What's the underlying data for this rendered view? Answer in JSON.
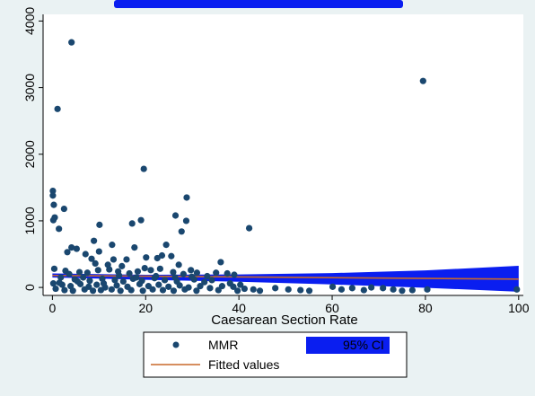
{
  "chart_data": {
    "type": "scatter",
    "title": "",
    "xlabel": "Caesarean Section Rate",
    "ylabel": "",
    "xlim": [
      -2,
      101
    ],
    "ylim": [
      -120,
      4100
    ],
    "xticks": [
      0,
      20,
      40,
      60,
      80,
      100
    ],
    "yticks": [
      0,
      1000,
      2000,
      3000,
      4000
    ],
    "grid": false,
    "legend": {
      "placement": "bottom",
      "entries": [
        "MMR",
        "95% CI",
        "Fitted values"
      ]
    },
    "series": [
      {
        "name": "MMR",
        "kind": "scatter",
        "color": "#1a476f",
        "points": [
          [
            4.1,
            3680
          ],
          [
            79.5,
            3100
          ],
          [
            1.1,
            2680
          ],
          [
            19.6,
            1780
          ],
          [
            0.1,
            1450
          ],
          [
            0.1,
            1380
          ],
          [
            28.8,
            1350
          ],
          [
            0.3,
            1240
          ],
          [
            2.5,
            1180
          ],
          [
            0.5,
            1050
          ],
          [
            26.4,
            1080
          ],
          [
            28.7,
            1000
          ],
          [
            0.2,
            1010
          ],
          [
            17.1,
            960
          ],
          [
            19.0,
            1010
          ],
          [
            10.1,
            940
          ],
          [
            1.4,
            880
          ],
          [
            27.7,
            840
          ],
          [
            42.2,
            890
          ],
          [
            8.9,
            700
          ],
          [
            12.8,
            640
          ],
          [
            4.1,
            600
          ],
          [
            5.2,
            580
          ],
          [
            24.4,
            640
          ],
          [
            7.1,
            500
          ],
          [
            10.0,
            540
          ],
          [
            17.6,
            600
          ],
          [
            3.2,
            530
          ],
          [
            20.1,
            450
          ],
          [
            22.5,
            440
          ],
          [
            23.5,
            480
          ],
          [
            25.5,
            470
          ],
          [
            8.4,
            430
          ],
          [
            13.1,
            420
          ],
          [
            15.9,
            420
          ],
          [
            36.1,
            380
          ],
          [
            9.2,
            360
          ],
          [
            11.9,
            340
          ],
          [
            14.9,
            320
          ],
          [
            19.8,
            290
          ],
          [
            27.1,
            340
          ],
          [
            0.4,
            280
          ],
          [
            2.8,
            250
          ],
          [
            5.8,
            230
          ],
          [
            3.6,
            200
          ],
          [
            7.5,
            220
          ],
          [
            9.8,
            260
          ],
          [
            12.2,
            270
          ],
          [
            14.1,
            240
          ],
          [
            16.5,
            210
          ],
          [
            18.3,
            240
          ],
          [
            21.1,
            260
          ],
          [
            23.1,
            280
          ],
          [
            25.9,
            230
          ],
          [
            28.1,
            200
          ],
          [
            29.7,
            260
          ],
          [
            31.0,
            220
          ],
          [
            33.2,
            170
          ],
          [
            35.1,
            220
          ],
          [
            37.5,
            210
          ],
          [
            39.0,
            190
          ],
          [
            1.8,
            150
          ],
          [
            4.8,
            120
          ],
          [
            6.6,
            150
          ],
          [
            8.0,
            100
          ],
          [
            10.7,
            130
          ],
          [
            13.4,
            110
          ],
          [
            15.2,
            90
          ],
          [
            17.3,
            130
          ],
          [
            19.2,
            100
          ],
          [
            21.9,
            140
          ],
          [
            24.1,
            110
          ],
          [
            26.7,
            90
          ],
          [
            30.4,
            120
          ],
          [
            32.6,
            80
          ],
          [
            34.2,
            110
          ],
          [
            38.1,
            60
          ],
          [
            40.3,
            40
          ],
          [
            0.2,
            60
          ],
          [
            2.1,
            40
          ],
          [
            3.9,
            20
          ],
          [
            6.0,
            50
          ],
          [
            7.8,
            10
          ],
          [
            9.5,
            40
          ],
          [
            11.3,
            0
          ],
          [
            13.8,
            30
          ],
          [
            16.1,
            10
          ],
          [
            18.7,
            50
          ],
          [
            20.6,
            20
          ],
          [
            22.8,
            40
          ],
          [
            24.9,
            10
          ],
          [
            27.3,
            30
          ],
          [
            29.2,
            0
          ],
          [
            31.7,
            20
          ],
          [
            33.8,
            -10
          ],
          [
            36.4,
            20
          ],
          [
            38.8,
            10
          ],
          [
            41.2,
            -20
          ],
          [
            43.1,
            -30
          ],
          [
            0.7,
            -20
          ],
          [
            2.6,
            -40
          ],
          [
            4.4,
            -50
          ],
          [
            6.9,
            -30
          ],
          [
            8.7,
            -50
          ],
          [
            10.4,
            -40
          ],
          [
            12.7,
            -30
          ],
          [
            14.6,
            -50
          ],
          [
            16.9,
            -40
          ],
          [
            19.4,
            -50
          ],
          [
            21.5,
            -30
          ],
          [
            23.7,
            -40
          ],
          [
            26.0,
            -50
          ],
          [
            28.4,
            -30
          ],
          [
            30.9,
            -50
          ],
          [
            35.6,
            -40
          ],
          [
            39.7,
            -50
          ],
          [
            44.5,
            -50
          ],
          [
            47.8,
            -10
          ],
          [
            50.6,
            -30
          ],
          [
            53.2,
            -40
          ],
          [
            55.1,
            -50
          ],
          [
            60.1,
            10
          ],
          [
            62.0,
            -30
          ],
          [
            64.3,
            -10
          ],
          [
            66.8,
            -40
          ],
          [
            68.4,
            0
          ],
          [
            70.9,
            -10
          ],
          [
            73.1,
            -30
          ],
          [
            75.0,
            -50
          ],
          [
            77.2,
            -40
          ],
          [
            80.4,
            -30
          ],
          [
            99.6,
            -30
          ],
          [
            1.5,
            70
          ],
          [
            5.4,
            90
          ],
          [
            11.0,
            60
          ],
          [
            14.3,
            180
          ],
          [
            18.0,
            150
          ],
          [
            22.2,
            170
          ],
          [
            26.3,
            150
          ],
          [
            29.9,
            160
          ]
        ]
      },
      {
        "name": "Fitted values",
        "kind": "line",
        "color": "#c8682a",
        "x": [
          0,
          100
        ],
        "y": [
          180,
          125
        ]
      },
      {
        "name": "95% CI",
        "kind": "band",
        "color": "#0a1ef0",
        "x": [
          0,
          20,
          40,
          60,
          80,
          100
        ],
        "lower": [
          150,
          115,
          85,
          45,
          -5,
          -65
        ],
        "upper": [
          210,
          190,
          195,
          215,
          255,
          325
        ]
      }
    ]
  }
}
